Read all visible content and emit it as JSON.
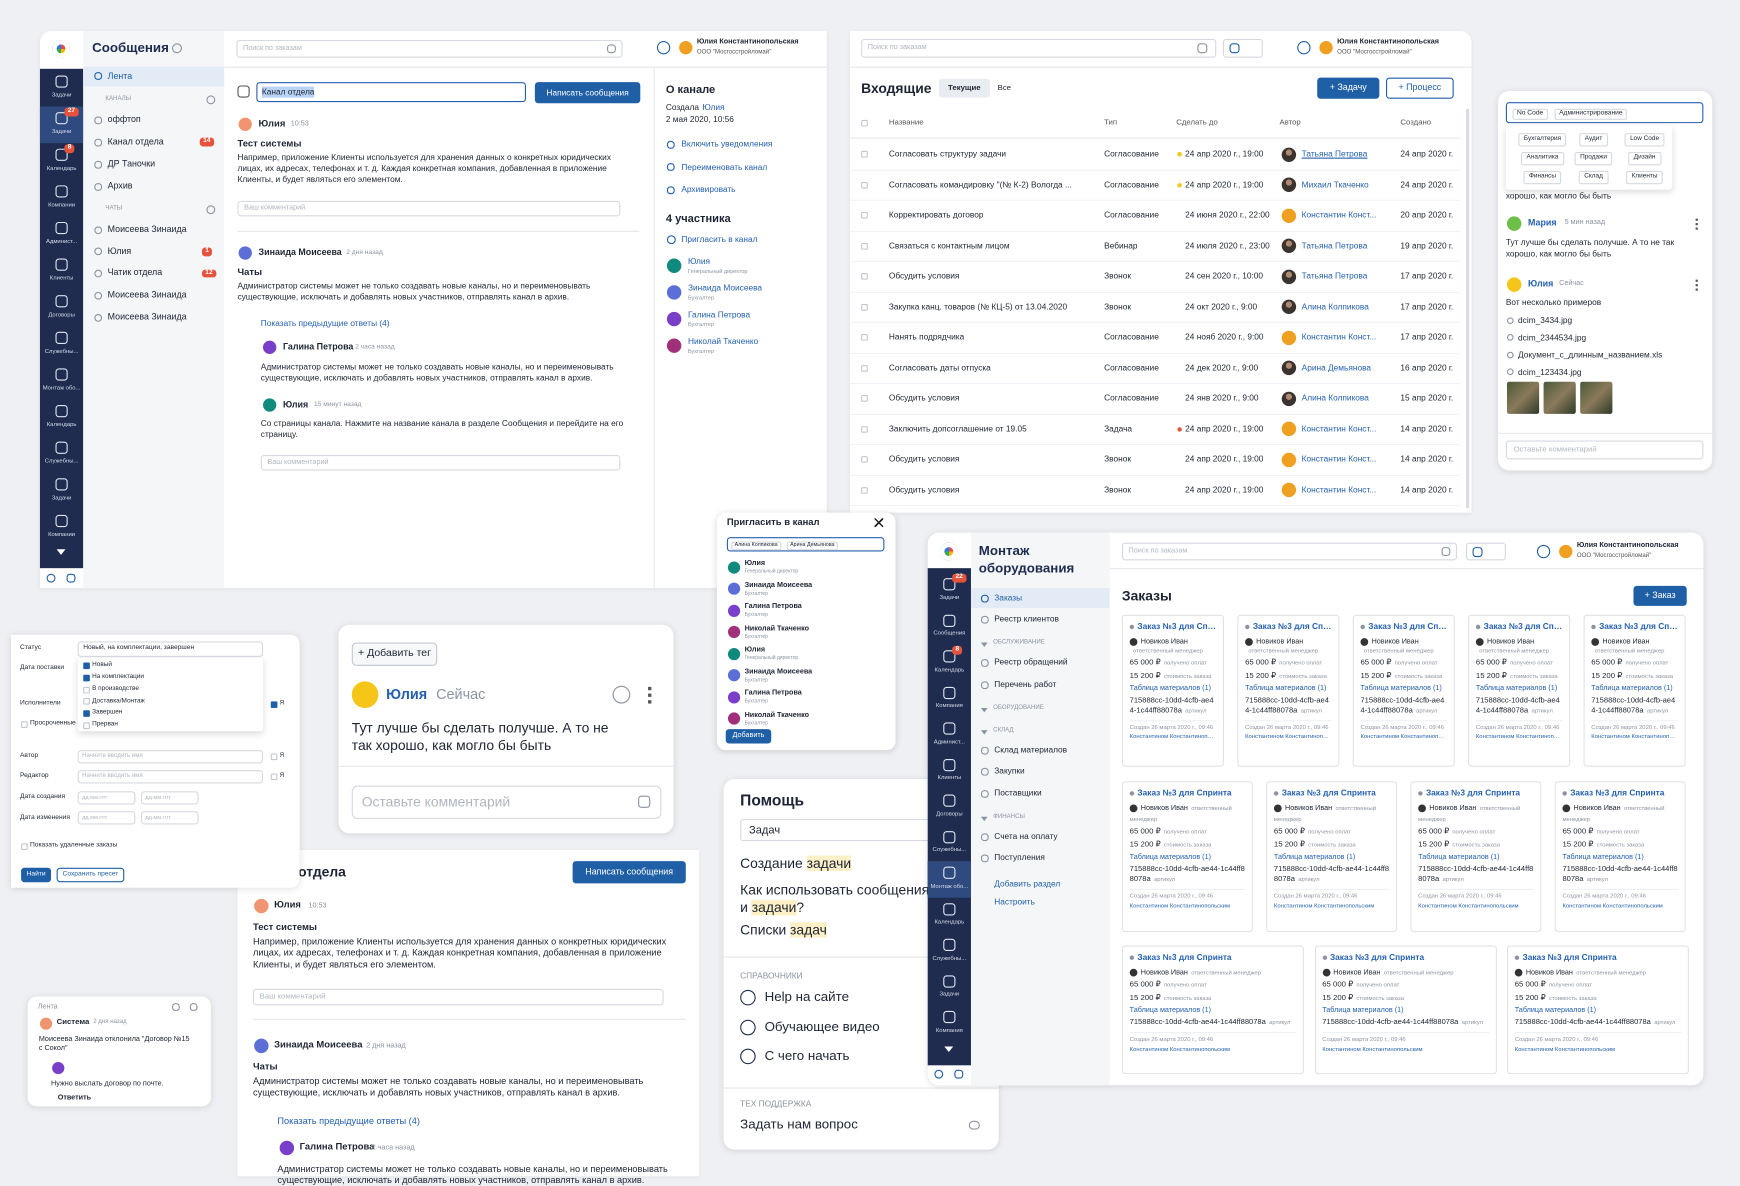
{
  "messages": {
    "title": "Сообщения",
    "search": "Поиск по заказам",
    "user": {
      "name": "Юлия Константинопольская",
      "org": "ООО \"Мосгосстройломай\""
    },
    "sidebar": [
      {
        "label": "Задачи"
      },
      {
        "label": "Задачи",
        "badge": 27
      },
      {
        "label": "Календарь",
        "badge": 8
      },
      {
        "label": "Компании"
      },
      {
        "label": "Админист..."
      },
      {
        "label": "Клиенты"
      },
      {
        "label": "Договоры"
      },
      {
        "label": "Служебны..."
      },
      {
        "label": "Монтаж обо..."
      },
      {
        "label": "Календарь"
      },
      {
        "label": "Служебны..."
      },
      {
        "label": "Задачи"
      },
      {
        "label": "Компании"
      }
    ],
    "feed": "Лента",
    "channels_header": "КАНАЛЫ",
    "channels": [
      {
        "name": "оффтоп"
      },
      {
        "name": "Канал отдела",
        "badge": 14
      },
      {
        "name": "ДР Таночки"
      },
      {
        "name": "Архив"
      }
    ],
    "chats_header": "ЧАТЫ",
    "chats": [
      {
        "name": "Моисеева Зинаида"
      },
      {
        "name": "Юлия",
        "badge": 1
      },
      {
        "name": "Чатик отдела",
        "badge": 12
      },
      {
        "name": "Моисеева Зинаида"
      },
      {
        "name": "Моисеева Зинаида"
      }
    ],
    "channel_name": "Канал отдела",
    "write_button": "Написать сообщения",
    "posts": [
      {
        "author": "Юлия",
        "time": "10:53",
        "subject": "Тест системы",
        "text": "Например, приложение Клиенты используется для хранения данных о конкретных юридических лицах, их адресах, телефонах и т. д. Каждая конкретная компания, добавленная в приложение Клиенты, и будет являться его элементом.",
        "comment_placeholder": "Ваш комментарий"
      },
      {
        "author": "Зинаида Моисеева",
        "time": "2 дня назад",
        "subject": "Чаты",
        "text": "Администратор системы может не только создавать новые каналы, но и переименовывать существующие, исключать и добавлять новых участников, отправлять канал в архив.",
        "show_replies": "Показать предыдущие ответы (4)",
        "replies": [
          {
            "author": "Галина Петрова",
            "time": "2 часа назад",
            "text": "Администратор системы может не только создавать новые каналы, но и переименовывать существующие, исключать и добавлять новых участников, отправлять канал в архив."
          },
          {
            "author": "Юлия",
            "time": "15 минут назад",
            "text": "Со страницы канала. Нажмите на название канала в разделе Сообщения и перейдите на его страницу."
          }
        ],
        "comment_placeholder": "Ваш комментарий"
      }
    ],
    "about": {
      "title": "О канале",
      "created_label": "Создала",
      "created_by": "Юлия",
      "created_at": "2 мая 2020, 10:56",
      "actions": [
        "Включить уведомления",
        "Переименовать канал",
        "Архивировать"
      ],
      "members_title": "4 участника",
      "invite": "Пригласить в канал",
      "members": [
        {
          "name": "Юлия",
          "role": "Генеральный директор"
        },
        {
          "name": "Зинаида Моисеева",
          "role": "Бухгалтер"
        },
        {
          "name": "Галина Петрова",
          "role": "Бухгалтер"
        },
        {
          "name": "Николай Ткаченко",
          "role": "Бухгалтер"
        }
      ]
    }
  },
  "inbox": {
    "title": "Входящие",
    "tabs": [
      "Текущие",
      "Все"
    ],
    "buttons": [
      "+ Задачу",
      "+ Процесс"
    ],
    "columns": [
      "Название",
      "Тип",
      "Сделать до",
      "Автор",
      "Создано"
    ],
    "rows": [
      [
        "Согласовать структуру задачи",
        "Согласование",
        "24 апр 2020 г., 19:00",
        "Татьяна Петрова",
        "24 апр 2020 г."
      ],
      [
        "Согласовать командировку \"(№ К-2) Вологда ...",
        "Согласование",
        "24 апр 2020 г., 19:00",
        "Михаил Ткаченко",
        "24 апр 2020 г."
      ],
      [
        "Корректировать договор",
        "Согласование",
        "24 июня 2020 г., 22:00",
        "Константин Конст...",
        "20 апр 2020 г."
      ],
      [
        "Связаться с контактным лицом",
        "Вебинар",
        "24 июля 2020 г., 23:00",
        "Татьяна Петрова",
        "19 апр 2020 г."
      ],
      [
        "Обсудить условия",
        "Звонок",
        "24 сен 2020 г., 10:00",
        "Татьяна Петрова",
        "17 апр 2020 г."
      ],
      [
        "Закупка канц. товаров (№ КЦ-5) от 13.04.2020",
        "Звонок",
        "24 окт 2020 г., 9:00",
        "Алина Колпикова",
        "17 апр 2020 г."
      ],
      [
        "Нанять подрядчика",
        "Согласование",
        "24 нояб 2020 г., 9:00",
        "Константин Конст...",
        "17 апр 2020 г."
      ],
      [
        "Согласовать даты отпуска",
        "Согласование",
        "24 дек 2020 г., 9:00",
        "Арина Демьянова",
        "16 апр 2020 г."
      ],
      [
        "Обсудить условия",
        "Согласование",
        "24 янв 2020 г., 9:00",
        "Алина Колпикова",
        "15 апр 2020 г."
      ],
      [
        "Заключить допсоглашение от 19.05",
        "Задача",
        "24 апр 2020 г., 19:00",
        "Константин Конст...",
        "14 апр 2020 г."
      ],
      [
        "Обсудить условия",
        "Звонок",
        "24 апр 2020 г., 19:00",
        "Константин Конст...",
        "14 апр 2020 г."
      ],
      [
        "Обсудить условия",
        "Звонок",
        "24 апр 2020 г., 19:00",
        "Константин Конст...",
        "14 апр 2020 г."
      ]
    ]
  },
  "tags": {
    "selected": [
      "No Code",
      "Администрирование"
    ],
    "options": [
      "Бухгалтерия",
      "Аудит",
      "Low Code",
      "Аналитика",
      "Продажи",
      "Дизайн",
      "Финансы",
      "Склад",
      "Клиенты"
    ],
    "partial_text": "хорошо, как могло бы быть",
    "comments": [
      {
        "author": "Мария",
        "time": "5 мин назад",
        "text": "Тут лучше бы сделать получше. А то не так хорошо, как могло бы быть"
      },
      {
        "author": "Юлия",
        "time": "Сейчас",
        "text": "Вот несколько примеров",
        "files": [
          "dcim_3434.jpg",
          "dcim_2344534.jpg",
          "Документ_с_длинным_названием.xls",
          "dcim_123434.jpg"
        ]
      }
    ],
    "placeholder": "Оставьте комментарий"
  },
  "filter": {
    "fields": [
      "Статус",
      "Дата поставки",
      "Исполнители",
      "Автор",
      "Редактор",
      "Дата создания",
      "Дата изменения"
    ],
    "overdue": "Просроченные заказы",
    "status_value": "Новый, на комплектации, завершен",
    "status_options": [
      {
        "label": "Новый",
        "checked": true
      },
      {
        "label": "На комплектации",
        "checked": true
      },
      {
        "label": "В производстве",
        "checked": false
      },
      {
        "label": "Доставка/Монтаж",
        "checked": false
      },
      {
        "label": "Завершен",
        "checked": true
      },
      {
        "label": "Прерван",
        "checked": false
      }
    ],
    "name_placeholder": "Начните вводить имя",
    "date_placeholder": "дд.мм.гггг",
    "me": "Я",
    "show_deleted": "Показать удаленные заказы",
    "buttons": [
      "Найти",
      "Сохранить пресет"
    ]
  },
  "comment_card": {
    "add_tag": "+ Добавить тег",
    "author": "Юлия",
    "time": "Сейчас",
    "text": "Тут лучше бы сделать получше. А то не так хорошо, как могло бы быть",
    "placeholder": "Оставьте комментарий"
  },
  "invite": {
    "title": "Пригласить в канал",
    "chips": [
      "Алина Колпикова",
      "Арина Демьянова"
    ],
    "people": [
      {
        "name": "Юлия",
        "role": "Генеральный директор"
      },
      {
        "name": "Зинаида Моисеева",
        "role": "Бухгалтер"
      },
      {
        "name": "Галина Петрова",
        "role": "Бухгалтер"
      },
      {
        "name": "Николай Ткаченко",
        "role": "Бухгалтер"
      },
      {
        "name": "Юлия",
        "role": "Генеральный директор"
      },
      {
        "name": "Зинаида Моисеева",
        "role": "Бухгалтер"
      },
      {
        "name": "Галина Петрова",
        "role": "Бухгалтер"
      },
      {
        "name": "Николай Ткаченко",
        "role": "Бухгалтер"
      }
    ],
    "button": "Добавить"
  },
  "mini_feed": {
    "title": "Лента",
    "author": "Система",
    "time": "2 дня назад",
    "text": "Моисеева Зинаида отклонила \"Договор №15 с Сокол\"",
    "reply_text": "Нужно выслать договор по почте.",
    "reply": "Ответить"
  },
  "help": {
    "title": "Помощь",
    "query": "Задач",
    "results": [
      {
        "text": "Создание ",
        "match": "задачи"
      },
      {
        "text": "Как использовать сообщения, файлы и ",
        "match": "задачи",
        "after": "?"
      },
      {
        "text": "Списки ",
        "match": "задач"
      }
    ],
    "sections": [
      {
        "title": "СПРАВОЧНИКИ",
        "items": [
          "Help на сайте",
          "Обучающее видео",
          "С чего начать"
        ]
      },
      {
        "title": "ТЕХ ПОДДЕРЖКА",
        "items": [
          "Задать нам вопрос"
        ]
      }
    ]
  },
  "montazh": {
    "title": "Монтаж оборудования",
    "sidebar": [
      {
        "label": "Задачи",
        "badge": 22
      },
      {
        "label": "Сообщения"
      },
      {
        "label": "Календарь",
        "badge": 8
      },
      {
        "label": "Компания"
      },
      {
        "label": "Админист..."
      },
      {
        "label": "Клиенты"
      },
      {
        "label": "Договоры"
      },
      {
        "label": "Служебны..."
      },
      {
        "label": "Монтаж обо..."
      },
      {
        "label": "Календарь"
      },
      {
        "label": "Служебны..."
      },
      {
        "label": "Задачи"
      },
      {
        "label": "Компания"
      }
    ],
    "nav": [
      {
        "label": "Заказы"
      },
      {
        "label": "Реестр клиентов"
      },
      {
        "header": "ОБСЛУЖИВАНИЕ"
      },
      {
        "label": "Реестр обращений"
      },
      {
        "label": "Перечень работ"
      },
      {
        "header": "ОБОРУДОВАНИЕ"
      },
      {
        "header": "СКЛАД"
      },
      {
        "label": "Склад материалов"
      },
      {
        "label": "Закупки"
      },
      {
        "label": "Поставщики"
      },
      {
        "header": "ФИНАНСЫ"
      },
      {
        "label": "Счета на оплату"
      },
      {
        "label": "Поступления"
      }
    ],
    "add_section": "Добавить раздел",
    "configure": "Настроить",
    "page_title": "Заказы",
    "new_button": "+ Заказ",
    "cards": [
      [
        "Заказ №3 для Спринта",
        "Заказ №3 для Спринта",
        "Заказ №3 для Спринта",
        "Заказ №3 для Спринта",
        "Заказ №3 для Спринта"
      ],
      [
        "Заказ №3 для Спринта",
        "Заказ №3 для Спринта",
        "Заказ №3 для Спринта",
        "Заказ №3 для Спринта"
      ],
      [
        "Заказ №3 для Спринта",
        "Заказ №3 для Спринта",
        "Заказ №3 для Спринта"
      ]
    ],
    "card": {
      "person": "Новиков Иван",
      "role": "ответственный менеджер",
      "paid": "65 000 ₽",
      "paid_label": "получено оплат",
      "cost": "15 200 ₽",
      "cost_label": "стоимость заказа",
      "materials": "Таблица материалов (1)",
      "article": "715888cc-10dd-4cfb-ae44-1c44ff88078a",
      "article_label": "артикул",
      "created": "Создан 26 марта 2020 г., 09:46",
      "creator": "Константином Константинопольским"
    }
  }
}
